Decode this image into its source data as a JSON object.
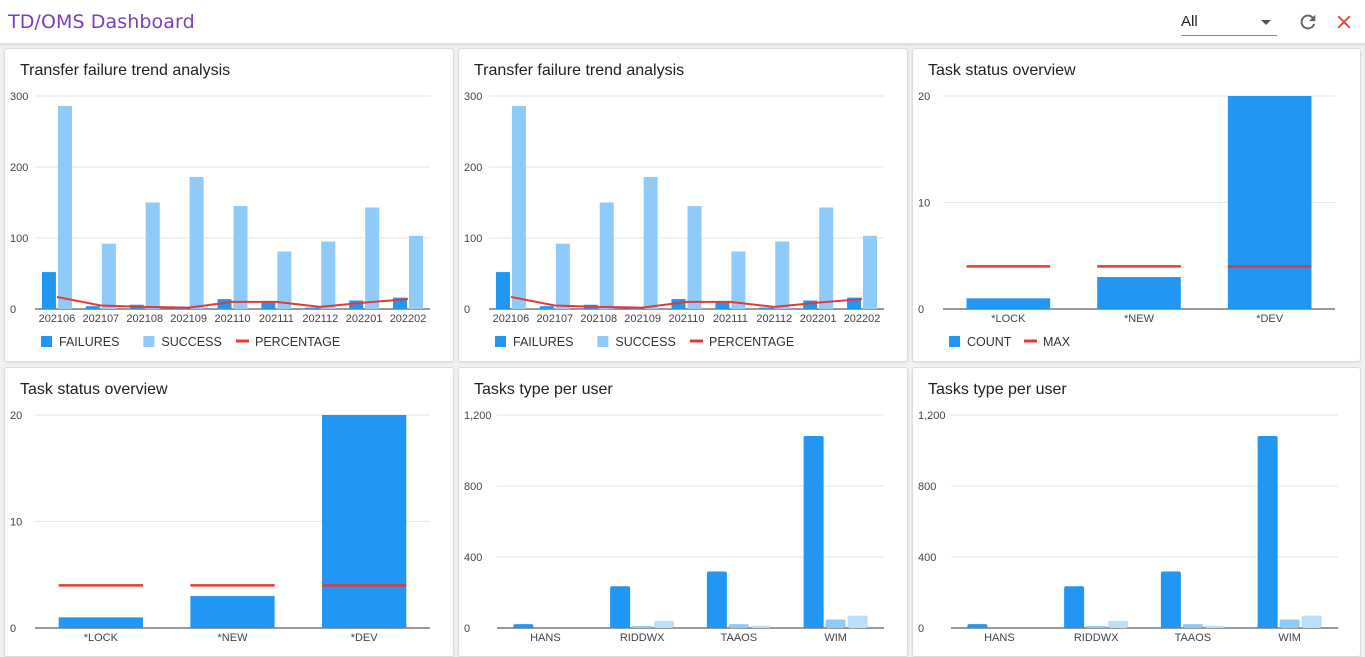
{
  "header": {
    "title": "TD/OMS Dashboard",
    "filter_value": "All",
    "refresh_icon": "refresh-icon",
    "close_icon": "close-icon"
  },
  "colors": {
    "primary": "#2196f3",
    "light": "#90caf9",
    "lighter": "#bbdefb",
    "red": "#e53935",
    "title": "#7b3fb8"
  },
  "cards": [
    {
      "title": "Transfer failure trend analysis",
      "chart_data": {
        "type": "bar",
        "categories": [
          "202106",
          "202107",
          "202108",
          "202109",
          "202110",
          "202111",
          "202112",
          "202201",
          "202202"
        ],
        "series": [
          {
            "name": "FAILURES",
            "kind": "bar",
            "color": "#2196f3",
            "values": [
              52,
              4,
              6,
              2,
              14,
              9,
              2,
              12,
              16
            ]
          },
          {
            "name": "SUCCESS",
            "kind": "bar",
            "color": "#90caf9",
            "values": [
              286,
              92,
              150,
              186,
              145,
              81,
              95,
              143,
              103
            ]
          },
          {
            "name": "PERCENTAGE",
            "kind": "line",
            "color": "#e53935",
            "values": [
              17,
              5,
              3,
              2,
              10,
              10,
              3,
              9,
              14
            ]
          }
        ],
        "ylim": [
          0,
          300
        ],
        "yticks": [
          "0",
          "100",
          "200",
          "300"
        ],
        "ytick_values": [
          0,
          100,
          200,
          300
        ],
        "legend_position": "bottom-left",
        "grid": true
      }
    },
    {
      "title": "Transfer failure trend analysis",
      "chart_data": {
        "type": "bar",
        "categories": [
          "202106",
          "202107",
          "202108",
          "202109",
          "202110",
          "202111",
          "202112",
          "202201",
          "202202"
        ],
        "series": [
          {
            "name": "FAILURES",
            "kind": "bar",
            "color": "#2196f3",
            "values": [
              52,
              4,
              6,
              2,
              14,
              9,
              2,
              12,
              16
            ]
          },
          {
            "name": "SUCCESS",
            "kind": "bar",
            "color": "#90caf9",
            "values": [
              286,
              92,
              150,
              186,
              145,
              81,
              95,
              143,
              103
            ]
          },
          {
            "name": "PERCENTAGE",
            "kind": "line",
            "color": "#e53935",
            "values": [
              17,
              5,
              3,
              2,
              10,
              10,
              3,
              9,
              14
            ]
          }
        ],
        "ylim": [
          0,
          300
        ],
        "yticks": [
          "0",
          "100",
          "200",
          "300"
        ],
        "ytick_values": [
          0,
          100,
          200,
          300
        ],
        "legend_position": "bottom-left",
        "grid": true
      }
    },
    {
      "title": "Task status overview",
      "chart_data": {
        "type": "bar",
        "categories": [
          "*LOCK",
          "*NEW",
          "*DEV"
        ],
        "series": [
          {
            "name": "COUNT",
            "kind": "bar",
            "color": "#2196f3",
            "values": [
              1,
              3,
              20
            ]
          },
          {
            "name": "MAX",
            "kind": "step",
            "color": "#e53935",
            "values": [
              4,
              4,
              4
            ]
          }
        ],
        "ylim": [
          0,
          20
        ],
        "yticks": [
          "0",
          "10",
          "20"
        ],
        "ytick_values": [
          0,
          10,
          20
        ],
        "legend_position": "bottom-left",
        "grid": true
      }
    },
    {
      "title": "Task status overview",
      "chart_data": {
        "type": "bar",
        "categories": [
          "*LOCK",
          "*NEW",
          "*DEV"
        ],
        "series": [
          {
            "name": "COUNT",
            "kind": "bar",
            "color": "#2196f3",
            "values": [
              1,
              3,
              20
            ]
          },
          {
            "name": "MAX",
            "kind": "step",
            "color": "#e53935",
            "values": [
              4,
              4,
              4
            ]
          }
        ],
        "ylim": [
          0,
          20
        ],
        "yticks": [
          "0",
          "10",
          "20"
        ],
        "ytick_values": [
          0,
          10,
          20
        ],
        "legend_position": "bottom-left",
        "grid": true
      }
    },
    {
      "title": "Tasks type per user",
      "chart_data": {
        "type": "bar",
        "categories": [
          "HANS",
          "RIDDWX",
          "TAAOS",
          "WIM"
        ],
        "series": [
          {
            "kind": "bar",
            "color": "#2196f3",
            "values": [
              22,
              235,
              318,
              1082
            ]
          },
          {
            "kind": "bar",
            "color": "#90caf9",
            "values": [
              0,
              5,
              22,
              48
            ]
          },
          {
            "kind": "bar",
            "color": "#bbdefb",
            "values": [
              0,
              40,
              12,
              70
            ]
          }
        ],
        "ylim": [
          0,
          1200
        ],
        "yticks": [
          "0",
          "400",
          "800",
          "1,200"
        ],
        "ytick_values": [
          0,
          400,
          800,
          1200
        ],
        "grid": true
      }
    },
    {
      "title": "Tasks type per user",
      "chart_data": {
        "type": "bar",
        "categories": [
          "HANS",
          "RIDDWX",
          "TAAOS",
          "WIM"
        ],
        "series": [
          {
            "kind": "bar",
            "color": "#2196f3",
            "values": [
              22,
              235,
              318,
              1082
            ]
          },
          {
            "kind": "bar",
            "color": "#90caf9",
            "values": [
              0,
              5,
              22,
              48
            ]
          },
          {
            "kind": "bar",
            "color": "#bbdefb",
            "values": [
              0,
              40,
              12,
              70
            ]
          }
        ],
        "ylim": [
          0,
          1200
        ],
        "yticks": [
          "0",
          "400",
          "800",
          "1,200"
        ],
        "ytick_values": [
          0,
          400,
          800,
          1200
        ],
        "grid": true
      }
    }
  ]
}
